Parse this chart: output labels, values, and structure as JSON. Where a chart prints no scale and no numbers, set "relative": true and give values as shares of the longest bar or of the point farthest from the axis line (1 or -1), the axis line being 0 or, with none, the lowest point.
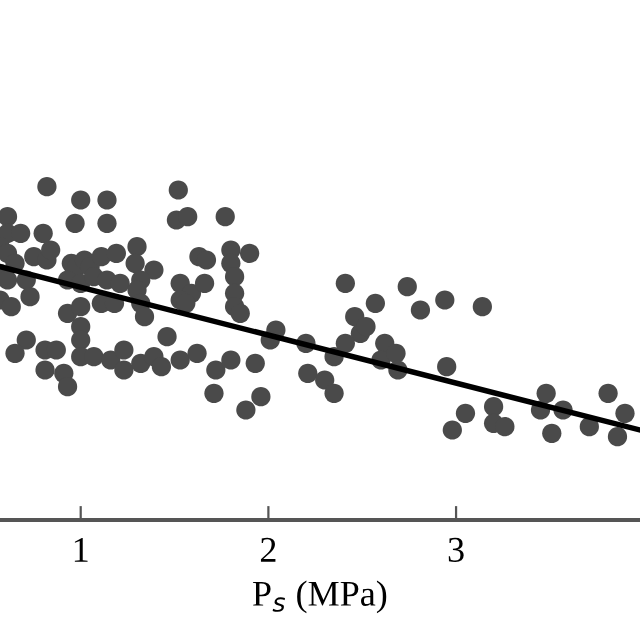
{
  "chart_data": {
    "type": "scatter",
    "relative": true,
    "xlabel": "P$_{s}$ (MPa)",
    "xlim": [
      0.57,
      3.98
    ],
    "xticks": [
      1,
      2,
      3
    ],
    "tick_labels": "x",
    "grid": false,
    "legend": false,
    "marker": "circle",
    "series": [
      {
        "color": "#4a4a4a",
        "x": [
          0.82,
          1.0,
          1.14,
          1.52,
          1.51,
          1.57,
          1.77,
          0.97,
          1.14,
          0.61,
          0.61,
          0.68,
          0.8,
          0.57,
          0.61,
          0.65,
          0.75,
          0.82,
          0.84,
          0.95,
          0.98,
          1.02,
          1.05,
          1.11,
          1.19,
          1.3,
          1.29,
          1.39,
          1.63,
          1.67,
          1.8,
          1.9,
          1.8,
          0.57,
          0.61,
          0.71,
          0.93,
          1.0,
          1.07,
          1.14,
          1.21,
          1.32,
          1.3,
          1.53,
          1.59,
          1.66,
          1.82,
          1.82,
          1.82,
          1.85,
          0.57,
          0.63,
          0.73,
          0.93,
          1.0,
          1.11,
          1.18,
          1.32,
          1.34,
          1.53,
          1.56,
          1.0,
          1.0,
          0.71,
          0.65,
          0.81,
          0.87,
          0.81,
          1.0,
          1.07,
          1.16,
          1.23,
          1.23,
          1.32,
          1.39,
          1.43,
          1.46,
          1.53,
          1.62,
          1.72,
          1.8,
          1.93,
          0.91,
          0.93,
          1.71,
          1.96,
          1.88,
          2.01,
          2.04,
          2.2,
          2.21,
          2.3,
          2.35,
          2.35,
          2.41,
          2.57,
          2.74,
          2.81,
          2.94,
          3.14,
          2.46,
          2.49,
          2.52,
          2.41,
          2.62,
          2.6,
          2.68,
          2.69,
          2.95,
          3.05,
          2.98,
          3.2,
          3.2,
          3.26,
          3.45,
          3.48,
          3.57,
          3.51,
          3.71,
          3.81,
          3.9,
          3.86
        ],
        "values": [
          1.0,
          0.96,
          0.96,
          0.99,
          0.9,
          0.91,
          0.91,
          0.89,
          0.89,
          0.91,
          0.86,
          0.86,
          0.86,
          0.82,
          0.8,
          0.77,
          0.79,
          0.78,
          0.81,
          0.77,
          0.76,
          0.78,
          0.76,
          0.79,
          0.8,
          0.82,
          0.77,
          0.75,
          0.79,
          0.78,
          0.81,
          0.8,
          0.77,
          0.74,
          0.72,
          0.72,
          0.72,
          0.71,
          0.73,
          0.72,
          0.71,
          0.72,
          0.69,
          0.71,
          0.68,
          0.71,
          0.73,
          0.68,
          0.64,
          0.62,
          0.66,
          0.64,
          0.67,
          0.62,
          0.64,
          0.65,
          0.65,
          0.65,
          0.61,
          0.66,
          0.65,
          0.58,
          0.54,
          0.54,
          0.5,
          0.51,
          0.51,
          0.45,
          0.49,
          0.49,
          0.48,
          0.51,
          0.45,
          0.47,
          0.49,
          0.46,
          0.55,
          0.48,
          0.5,
          0.45,
          0.48,
          0.47,
          0.44,
          0.4,
          0.38,
          0.37,
          0.33,
          0.54,
          0.57,
          0.53,
          0.44,
          0.42,
          0.38,
          0.49,
          0.71,
          0.65,
          0.7,
          0.63,
          0.66,
          0.64,
          0.61,
          0.56,
          0.58,
          0.53,
          0.53,
          0.48,
          0.5,
          0.45,
          0.46,
          0.32,
          0.27,
          0.34,
          0.29,
          0.28,
          0.33,
          0.38,
          0.33,
          0.26,
          0.28,
          0.38,
          0.32,
          0.25
        ]
      },
      {
        "type": "line",
        "color": "#000000",
        "line_style": "solid",
        "marker": "none",
        "x": [
          0.57,
          3.98
        ],
        "values": [
          0.76,
          0.27
        ]
      }
    ]
  }
}
